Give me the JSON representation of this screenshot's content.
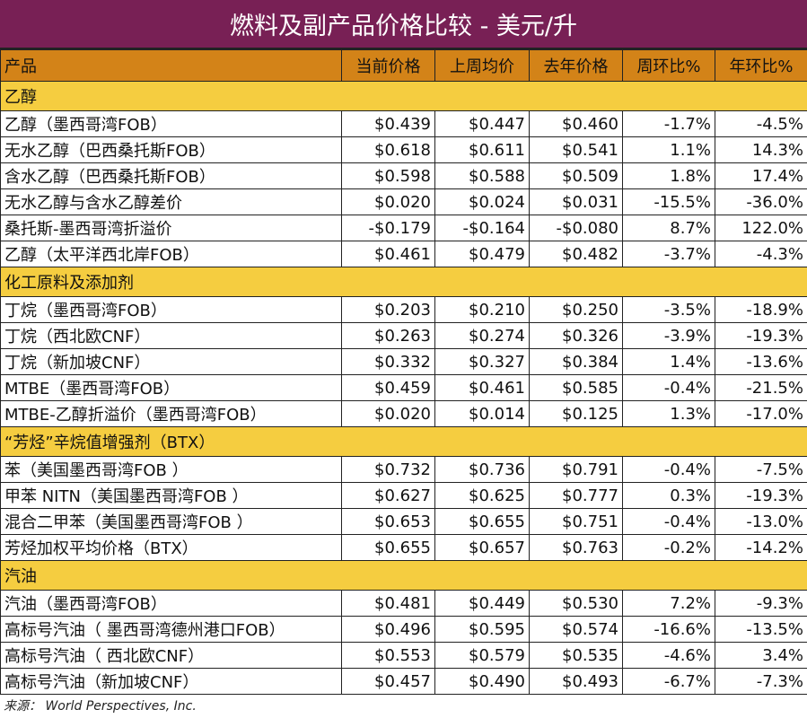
{
  "title": "燃料及副产品价格比较 - 美元/升",
  "columns": [
    "产品",
    "当前价格",
    "上周均价",
    "去年价格",
    "周环比%",
    "年环比%"
  ],
  "sections": [
    {
      "name": "乙醇",
      "rows": [
        [
          "乙醇（墨西哥湾FOB）",
          "$0.439",
          "$0.447",
          "$0.460",
          "-1.7%",
          "-4.5%"
        ],
        [
          "无水乙醇（巴西桑托斯FOB）",
          "$0.618",
          "$0.611",
          "$0.541",
          "1.1%",
          "14.3%"
        ],
        [
          "含水乙醇（巴西桑托斯FOB）",
          "$0.598",
          "$0.588",
          "$0.509",
          "1.8%",
          "17.4%"
        ],
        [
          "无水乙醇与含水乙醇差价",
          "$0.020",
          "$0.024",
          "$0.031",
          "-15.5%",
          "-36.0%"
        ],
        [
          "桑托斯-墨西哥湾折溢价",
          "-$0.179",
          "-$0.164",
          "-$0.080",
          "8.7%",
          "122.0%"
        ],
        [
          "乙醇（太平洋西北岸FOB）",
          "$0.461",
          "$0.479",
          "$0.482",
          "-3.7%",
          "-4.3%"
        ]
      ]
    },
    {
      "name": "化工原料及添加剂",
      "rows": [
        [
          "丁烷（墨西哥湾FOB）",
          "$0.203",
          "$0.210",
          "$0.250",
          "-3.5%",
          "-18.9%"
        ],
        [
          "丁烷（西北欧CNF）",
          "$0.263",
          "$0.274",
          "$0.326",
          "-3.9%",
          "-19.3%"
        ],
        [
          "丁烷（新加坡CNF）",
          "$0.332",
          "$0.327",
          "$0.384",
          "1.4%",
          "-13.6%"
        ],
        [
          "MTBE（墨西哥湾FOB）",
          "$0.459",
          "$0.461",
          "$0.585",
          "-0.4%",
          "-21.5%"
        ],
        [
          "MTBE-乙醇折溢价（墨西哥湾FOB）",
          "$0.020",
          "$0.014",
          "$0.125",
          "1.3%",
          "-17.0%"
        ]
      ]
    },
    {
      "name": "“芳烃”辛烷值增强剂（BTX）",
      "rows": [
        [
          "苯（美国墨西哥湾FOB ）",
          "$0.732",
          "$0.736",
          "$0.791",
          "-0.4%",
          "-7.5%"
        ],
        [
          "甲苯 NITN（美国墨西哥湾FOB ）",
          "$0.627",
          "$0.625",
          "$0.777",
          "0.3%",
          "-19.3%"
        ],
        [
          "混合二甲苯（美国墨西哥湾FOB ）",
          "$0.653",
          "$0.655",
          "$0.751",
          "-0.4%",
          "-13.0%"
        ],
        [
          "芳烃加权平均价格（BTX）",
          "$0.655",
          "$0.657",
          "$0.763",
          "-0.2%",
          "-14.2%"
        ]
      ]
    },
    {
      "name": "汽油",
      "rows": [
        [
          "汽油（墨西哥湾FOB）",
          "$0.481",
          "$0.449",
          "$0.530",
          "7.2%",
          "-9.3%"
        ],
        [
          "高标号汽油（ 墨西哥湾德州港口FOB）",
          "$0.496",
          "$0.595",
          "$0.574",
          "-16.6%",
          "-13.5%"
        ],
        [
          "高标号汽油（ 西北欧CNF）",
          "$0.553",
          "$0.579",
          "$0.535",
          "-4.6%",
          "3.4%"
        ],
        [
          "高标号汽油（新加坡CNF）",
          "$0.457",
          "$0.490",
          "$0.493",
          "-6.7%",
          "-7.3%"
        ]
      ]
    }
  ],
  "source": "来源： World Perspectives, Inc.",
  "colors": {
    "title_bg": "#782055",
    "header_bg": "#d38318",
    "section_bg": "#f5cd40"
  }
}
